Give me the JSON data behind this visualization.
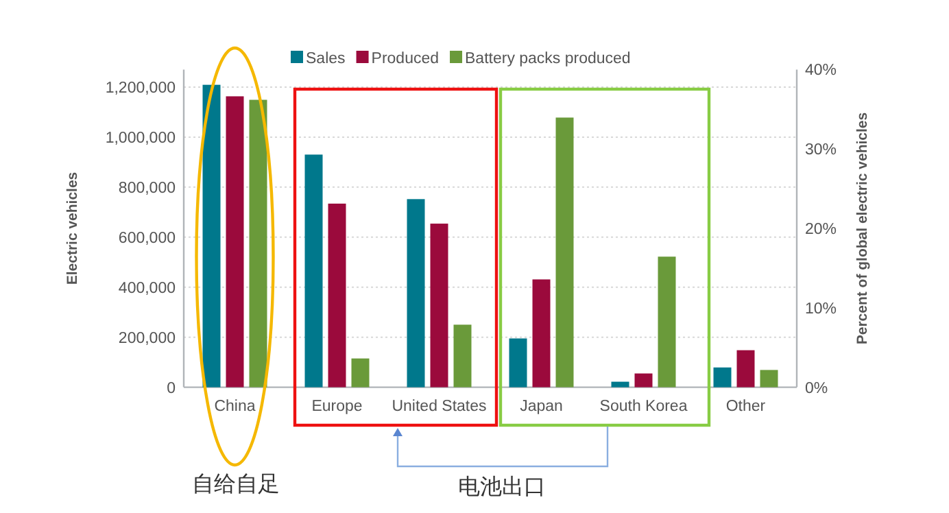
{
  "chart_data": {
    "type": "bar",
    "categories": [
      "China",
      "Europe",
      "United States",
      "Japan",
      "South Korea",
      "Other"
    ],
    "series": [
      {
        "name": "Sales",
        "color": "#00788c",
        "values": [
          1209000,
          930000,
          752000,
          195000,
          22000,
          79000
        ]
      },
      {
        "name": "Produced",
        "color": "#9b0a3c",
        "values": [
          1163000,
          734000,
          654000,
          431000,
          55000,
          148000
        ]
      },
      {
        "name": "Battery packs produced",
        "color": "#6a9a3a",
        "values": [
          1149000,
          115000,
          250000,
          1078000,
          522000,
          69000
        ]
      }
    ],
    "ylabel": "Electric vehicles",
    "y2label": "Percent of global electric vehicles",
    "ylim": [
      0,
      1270000
    ],
    "yticks": [
      {
        "value": 0,
        "label": "0"
      },
      {
        "value": 200000,
        "label": "200,000"
      },
      {
        "value": 400000,
        "label": "400,000"
      },
      {
        "value": 600000,
        "label": "600,000"
      },
      {
        "value": 800000,
        "label": "800,000"
      },
      {
        "value": 1000000,
        "label": "1,000,000"
      },
      {
        "value": 1200000,
        "label": "1,200,000"
      }
    ],
    "y2lim": [
      0,
      40
    ],
    "y2ticks": [
      {
        "value": 0,
        "label": "0%"
      },
      {
        "value": 10,
        "label": "10%"
      },
      {
        "value": 20,
        "label": "20%"
      },
      {
        "value": 30,
        "label": "30%"
      },
      {
        "value": 40,
        "label": "40%"
      }
    ],
    "grid": "y",
    "legend": "top",
    "annotations": [
      "自给自足",
      "电池出口"
    ]
  }
}
